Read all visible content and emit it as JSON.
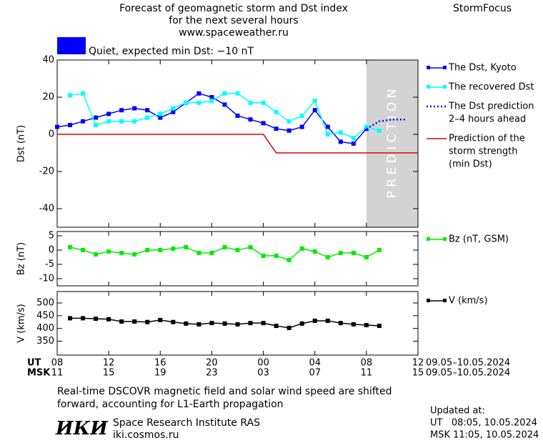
{
  "header": {
    "title": [
      "Forecast of geomagnetic storm and Dst index",
      "for the next several hours",
      "www.spaceweather.ru"
    ],
    "brand": "StormFocus",
    "status": {
      "text": "Quiet, expected min Dst: −10 nT",
      "color": "#0000ff"
    }
  },
  "x_axis": {
    "xlim": [
      0,
      28
    ],
    "xticks": [
      {
        "value": 0,
        "label": "08"
      },
      {
        "value": 4,
        "label": "12"
      },
      {
        "value": 8,
        "label": "16"
      },
      {
        "value": 12,
        "label": "20"
      },
      {
        "value": 16,
        "label": "00"
      },
      {
        "value": 20,
        "label": "04"
      },
      {
        "value": 24,
        "label": "08"
      },
      {
        "value": 28,
        "label": "12"
      }
    ],
    "msk_ticks": [
      {
        "value": 0,
        "label": "11"
      },
      {
        "value": 4,
        "label": "15"
      },
      {
        "value": 8,
        "label": "19"
      },
      {
        "value": 12,
        "label": "23"
      },
      {
        "value": 16,
        "label": "03"
      },
      {
        "value": 20,
        "label": "07"
      },
      {
        "value": 24,
        "label": "11"
      },
      {
        "value": 28,
        "label": "15"
      }
    ],
    "row_labels": [
      "UT",
      "MSK"
    ],
    "dates": [
      "09.05–10.05.2024",
      "09.05–10.05.2024"
    ]
  },
  "chart_data": [
    {
      "type": "line",
      "ylabel": "Dst (nT)",
      "ylim": [
        -50,
        40
      ],
      "yticks": [
        -40,
        -20,
        0,
        20,
        40
      ],
      "legend": "right",
      "band": {
        "x": [
          24,
          28
        ],
        "label": "P R E D I C T I O N",
        "color": "#d3d3d3"
      },
      "series": [
        {
          "name": "The Dst, Kyoto",
          "color": "#0000ff",
          "marker": true,
          "dash": false,
          "x": [
            0,
            1,
            2,
            3,
            4,
            5,
            6,
            7,
            8,
            9,
            10,
            11,
            12,
            13,
            14,
            15,
            16,
            17,
            18,
            19,
            20,
            21,
            22,
            23,
            24
          ],
          "values": [
            4,
            5,
            7,
            9,
            11,
            13,
            14,
            13,
            9,
            12,
            17,
            22,
            20,
            16,
            10,
            8,
            6,
            3,
            2,
            4,
            13,
            4,
            -4,
            -5,
            3
          ]
        },
        {
          "name": "The recovered Dst",
          "color": "#00ffff",
          "marker": true,
          "dash": false,
          "x": [
            1,
            2,
            3,
            4,
            5,
            6,
            7,
            8,
            9,
            10,
            11,
            12,
            13,
            14,
            15,
            16,
            17,
            18,
            19,
            20,
            21,
            22,
            23,
            24,
            25
          ],
          "values": [
            21,
            22,
            5,
            7,
            7,
            7,
            9,
            11,
            14,
            17,
            17,
            18,
            22,
            22,
            17,
            17,
            12,
            7,
            10,
            18,
            0,
            1,
            -2,
            4,
            2
          ]
        },
        {
          "name": [
            "The Dst prediction",
            "2–4 hours ahead"
          ],
          "color": "#0000ff",
          "marker": false,
          "dash": true,
          "x": [
            24,
            25,
            26,
            27
          ],
          "values": [
            3,
            7,
            8,
            8
          ]
        },
        {
          "name": [
            "Prediction of the",
            "storm strength",
            "(min Dst)"
          ],
          "color": "#e00000",
          "marker": false,
          "dash": false,
          "x": [
            0,
            16,
            17,
            28
          ],
          "values": [
            0,
            0,
            -10,
            -10
          ]
        }
      ]
    },
    {
      "type": "line",
      "ylabel": "Bz (nT)",
      "ylim": [
        -12.5,
        6.5
      ],
      "yticks": [
        -10,
        -5,
        0,
        5
      ],
      "legend": "right",
      "series": [
        {
          "name": "Bz (nT, GSM)",
          "color": "#00ee00",
          "marker": true,
          "dash": false,
          "x": [
            1,
            2,
            3,
            4,
            5,
            6,
            7,
            8,
            9,
            10,
            11,
            12,
            13,
            14,
            15,
            16,
            17,
            18,
            19,
            20,
            21,
            22,
            23,
            24,
            25
          ],
          "values": [
            1,
            0,
            -1.5,
            -0.5,
            -1,
            -1.5,
            0,
            0,
            0.5,
            1,
            -1,
            -1,
            1,
            0,
            1,
            -2,
            -2,
            -3.5,
            0.5,
            -0.5,
            -2.5,
            -1,
            -1,
            -2.5,
            0
          ]
        }
      ]
    },
    {
      "type": "line",
      "ylabel": "V (km/s)",
      "ylim": [
        295,
        545
      ],
      "yticks": [
        350,
        400,
        450,
        500
      ],
      "legend": "right",
      "series": [
        {
          "name": "V (km/s)",
          "color": "#000000",
          "marker": true,
          "dash": false,
          "x": [
            1,
            2,
            3,
            4,
            5,
            6,
            7,
            8,
            9,
            10,
            11,
            12,
            13,
            14,
            15,
            16,
            17,
            18,
            19,
            20,
            21,
            22,
            23,
            24,
            25
          ],
          "values": [
            440,
            440,
            438,
            436,
            427,
            427,
            425,
            433,
            425,
            419,
            416,
            421,
            419,
            416,
            421,
            421,
            410,
            402,
            419,
            430,
            430,
            421,
            416,
            413,
            410
          ]
        }
      ]
    }
  ],
  "footer": {
    "note": [
      "Real-time DSCOVR magnetic field and solar wind speed are shifted",
      "forward, accounting for L1-Earth propagation"
    ],
    "logo": "ИКИ",
    "institute": "Space Research Institute RAS",
    "site": "iki.cosmos.ru",
    "updated": [
      "Updated at:",
      "UT   08:05, 10.05.2024",
      "MSK 11:05, 10.05.2024"
    ]
  }
}
